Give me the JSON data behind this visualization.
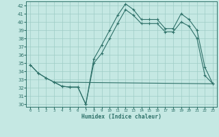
{
  "background_color": "#c5e8e3",
  "grid_color": "#9eccc5",
  "line_color": "#2d7068",
  "xlabel": "Humidex (Indice chaleur)",
  "xlim": [
    -0.5,
    23.5
  ],
  "ylim": [
    29.7,
    42.5
  ],
  "yticks": [
    30,
    31,
    32,
    33,
    34,
    35,
    36,
    37,
    38,
    39,
    40,
    41,
    42
  ],
  "xticks": [
    0,
    1,
    2,
    3,
    4,
    5,
    6,
    7,
    8,
    9,
    10,
    11,
    12,
    13,
    14,
    15,
    16,
    17,
    18,
    19,
    20,
    21,
    22,
    23
  ],
  "line1_x": [
    0,
    1,
    2,
    3,
    4,
    5,
    6,
    7,
    8,
    9,
    10,
    11,
    12,
    13,
    14,
    15,
    16,
    17,
    18,
    19,
    20,
    21,
    22,
    23
  ],
  "line1_y": [
    34.8,
    33.8,
    33.2,
    32.7,
    32.2,
    32.1,
    32.1,
    30.0,
    35.5,
    37.2,
    39.0,
    40.8,
    42.2,
    41.5,
    40.3,
    40.3,
    40.3,
    39.2,
    39.2,
    41.0,
    40.3,
    39.0,
    34.5,
    32.5
  ],
  "line2_x": [
    0,
    1,
    2,
    3,
    4,
    5,
    6,
    7,
    8,
    9,
    10,
    11,
    12,
    13,
    14,
    15,
    16,
    17,
    18,
    19,
    20,
    21,
    22,
    23
  ],
  "line2_y": [
    34.8,
    33.8,
    33.2,
    32.7,
    32.2,
    32.1,
    32.1,
    30.0,
    35.0,
    36.2,
    38.0,
    39.8,
    41.5,
    40.8,
    39.8,
    39.8,
    39.8,
    38.8,
    38.8,
    40.0,
    39.5,
    38.0,
    33.5,
    32.5
  ],
  "line3_x": [
    3,
    23
  ],
  "line3_y": [
    32.7,
    32.5
  ]
}
